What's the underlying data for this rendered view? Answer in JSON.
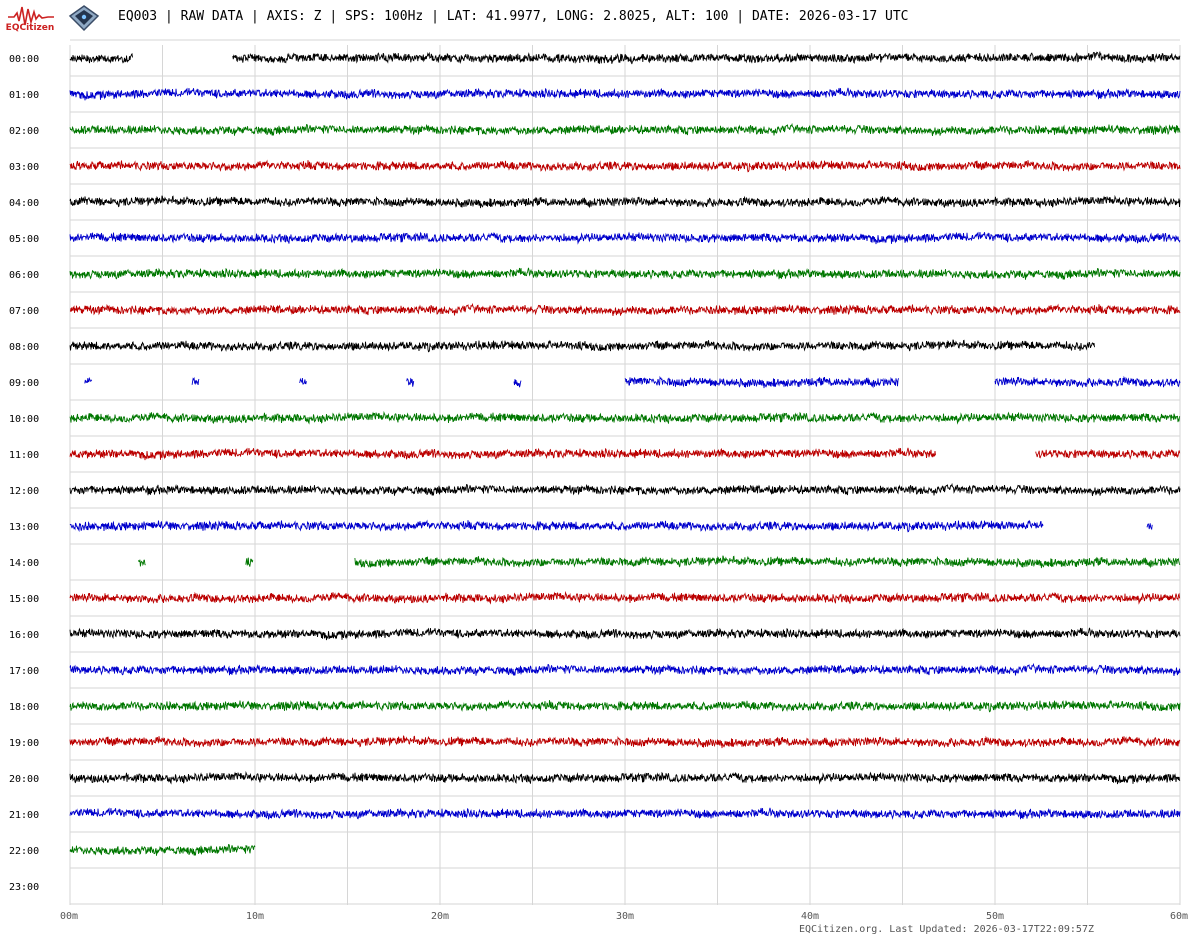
{
  "header": {
    "logo_text": "EQCitizen",
    "title": "EQ003 | RAW DATA | AXIS: Z | SPS: 100Hz | LAT: 41.9977, LONG: 2.8025, ALT: 100 | DATE: 2026-03-17 UTC"
  },
  "footer": {
    "text": "EQCitizen.org. Last Updated: 2026-03-17T22:09:57Z"
  },
  "chart_data": {
    "type": "line",
    "title": "EQ003 | RAW DATA | AXIS: Z | SPS: 100Hz | LAT: 41.9977, LONG: 2.8025, ALT: 100 | DATE: 2026-03-17 UTC",
    "xlabel": "",
    "ylabel": "",
    "xlim": [
      0,
      60
    ],
    "x_unit": "minutes",
    "x_ticks": [
      0,
      10,
      20,
      30,
      40,
      50,
      60
    ],
    "x_tick_labels": [
      "00m",
      "10m",
      "20m",
      "30m",
      "40m",
      "50m",
      "60m"
    ],
    "y_tick_labels": [
      "00:00",
      "01:00",
      "02:00",
      "03:00",
      "04:00",
      "05:00",
      "06:00",
      "07:00",
      "08:00",
      "09:00",
      "10:00",
      "11:00",
      "12:00",
      "13:00",
      "14:00",
      "15:00",
      "16:00",
      "17:00",
      "18:00",
      "19:00",
      "20:00",
      "21:00",
      "22:00",
      "23:00"
    ],
    "grid": true,
    "color_cycle": [
      "#000000",
      "#0000cc",
      "#007700",
      "#bb0000"
    ],
    "rows": [
      {
        "hour": "00:00",
        "segments": [
          [
            0,
            3.4
          ],
          [
            8.8,
            60
          ]
        ]
      },
      {
        "hour": "01:00",
        "segments": [
          [
            0,
            60
          ]
        ]
      },
      {
        "hour": "02:00",
        "segments": [
          [
            0,
            60
          ]
        ]
      },
      {
        "hour": "03:00",
        "segments": [
          [
            0,
            60
          ]
        ]
      },
      {
        "hour": "04:00",
        "segments": [
          [
            0,
            60
          ]
        ]
      },
      {
        "hour": "05:00",
        "segments": [
          [
            0,
            60
          ]
        ]
      },
      {
        "hour": "06:00",
        "segments": [
          [
            0,
            60
          ]
        ]
      },
      {
        "hour": "07:00",
        "segments": [
          [
            0,
            60
          ]
        ]
      },
      {
        "hour": "08:00",
        "segments": [
          [
            0,
            55.4
          ]
        ]
      },
      {
        "hour": "09:00",
        "segments": [
          [
            0.8,
            1.2
          ],
          [
            6.6,
            7.0
          ],
          [
            12.4,
            12.8
          ],
          [
            18.2,
            18.6
          ],
          [
            24.0,
            24.4
          ],
          [
            30.0,
            44.8
          ],
          [
            50.0,
            60
          ]
        ]
      },
      {
        "hour": "10:00",
        "segments": [
          [
            0,
            60
          ]
        ]
      },
      {
        "hour": "11:00",
        "segments": [
          [
            0,
            46.8
          ],
          [
            52.2,
            60
          ]
        ]
      },
      {
        "hour": "12:00",
        "segments": [
          [
            0,
            60
          ]
        ]
      },
      {
        "hour": "13:00",
        "segments": [
          [
            0,
            52.6
          ],
          [
            58.2,
            58.5
          ]
        ]
      },
      {
        "hour": "14:00",
        "segments": [
          [
            3.7,
            4.1
          ],
          [
            9.5,
            9.9
          ],
          [
            15.4,
            60
          ]
        ]
      },
      {
        "hour": "15:00",
        "segments": [
          [
            0,
            60
          ]
        ]
      },
      {
        "hour": "16:00",
        "segments": [
          [
            0,
            60
          ]
        ]
      },
      {
        "hour": "17:00",
        "segments": [
          [
            0,
            60
          ]
        ]
      },
      {
        "hour": "18:00",
        "segments": [
          [
            0,
            60
          ]
        ]
      },
      {
        "hour": "19:00",
        "segments": [
          [
            0,
            60
          ]
        ]
      },
      {
        "hour": "20:00",
        "segments": [
          [
            0,
            60
          ]
        ]
      },
      {
        "hour": "21:00",
        "segments": [
          [
            0,
            60
          ]
        ]
      },
      {
        "hour": "22:00",
        "segments": [
          [
            0,
            10
          ]
        ]
      },
      {
        "hour": "23:00",
        "segments": []
      }
    ]
  }
}
